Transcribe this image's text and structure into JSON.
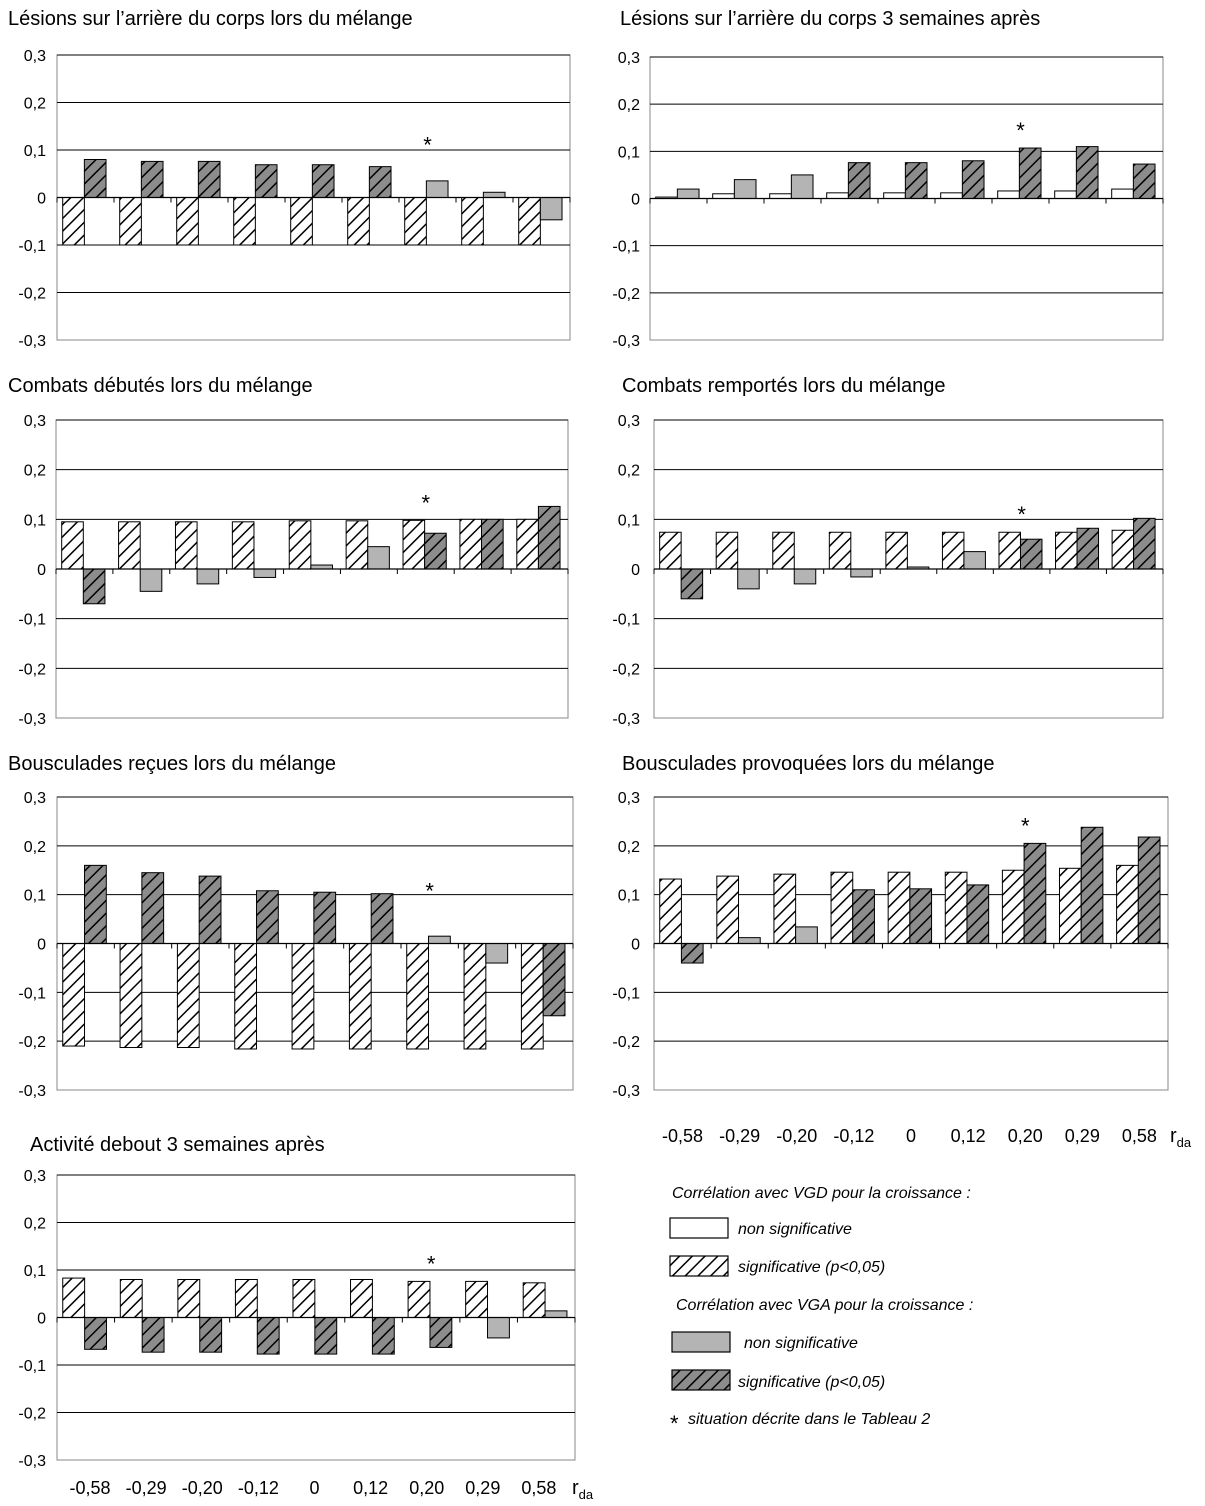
{
  "colors": {
    "hatch_stroke": "#000000",
    "plain_fill": "#ffffff",
    "gray_fill": "#b4b4b4",
    "dark_hatch_bg": "#8c8c8c",
    "grid": "#000000",
    "frame": "#888888"
  },
  "x_axis": {
    "categories": [
      "-0,58",
      "-0,29",
      "-0,20",
      "-0,12",
      "0",
      "0,12",
      "0,20",
      "0,29",
      "0,58"
    ],
    "label_main": "r",
    "label_sub": "da"
  },
  "legend": {
    "vgd_heading": "Corrélation avec  VGD pour la croissance :",
    "vgd_nonsig": "non significative",
    "vgd_sig": "significative (p<0,05)",
    "vga_heading": "Corrélation avec VGA pour la croissance :",
    "vga_nonsig": "non significative",
    "vga_sig": "significative (p<0,05)",
    "star_symbol": "*",
    "star_text": "situation décrite dans le Tableau 2"
  },
  "chart_data": [
    {
      "type": "bar",
      "title": "Lésions sur l’arrière du corps lors du mélange",
      "ylim": [
        -0.3,
        0.3
      ],
      "yticks": [
        "-0,3",
        "-0,2",
        "-0,1",
        "0",
        "0,1",
        "0,2",
        "0,3"
      ],
      "categories": [
        "-0,58",
        "-0,29",
        "-0,20",
        "-0,12",
        "0",
        "0,12",
        "0,20",
        "0,29",
        "0,58"
      ],
      "star_category": "0,20",
      "series": [
        {
          "values": [
            -0.1,
            -0.1,
            -0.1,
            -0.1,
            -0.1,
            -0.1,
            -0.1,
            -0.1,
            -0.1
          ],
          "significant": [
            true,
            true,
            true,
            true,
            true,
            true,
            true,
            true,
            true
          ]
        },
        {
          "values": [
            0.08,
            0.076,
            0.076,
            0.069,
            0.069,
            0.065,
            0.035,
            0.011,
            -0.047
          ],
          "significant": [
            true,
            true,
            true,
            true,
            true,
            true,
            false,
            false,
            false
          ]
        }
      ]
    },
    {
      "type": "bar",
      "title": "Lésions sur l’arrière du corps 3 semaines après",
      "ylim": [
        -0.3,
        0.3
      ],
      "yticks": [
        "-0,3",
        "-0,2",
        "-0,1",
        "0",
        "0,1",
        "0,2",
        "0,3"
      ],
      "categories": [
        "-0,58",
        "-0,29",
        "-0,20",
        "-0,12",
        "0",
        "0,12",
        "0,20",
        "0,29",
        "0,58"
      ],
      "star_category": "0,20",
      "series": [
        {
          "values": [
            0.003,
            0.01,
            0.01,
            0.012,
            0.012,
            0.012,
            0.016,
            0.016,
            0.02
          ],
          "significant": [
            false,
            false,
            false,
            false,
            false,
            false,
            false,
            false,
            false
          ]
        },
        {
          "values": [
            0.02,
            0.04,
            0.05,
            0.076,
            0.076,
            0.08,
            0.107,
            0.11,
            0.073
          ],
          "significant": [
            false,
            false,
            false,
            true,
            true,
            true,
            true,
            true,
            true
          ]
        }
      ]
    },
    {
      "type": "bar",
      "title": "Combats débutés lors du mélange",
      "ylim": [
        -0.3,
        0.3
      ],
      "yticks": [
        "-0,3",
        "-0,2",
        "-0,1",
        "0",
        "0,1",
        "0,2",
        "0,3"
      ],
      "categories": [
        "-0,58",
        "-0,29",
        "-0,20",
        "-0,12",
        "0",
        "0,12",
        "0,20",
        "0,29",
        "0,58"
      ],
      "star_category": "0,20",
      "series": [
        {
          "values": [
            0.095,
            0.095,
            0.095,
            0.095,
            0.097,
            0.097,
            0.098,
            0.1,
            0.1
          ],
          "significant": [
            true,
            true,
            true,
            true,
            true,
            true,
            true,
            true,
            true
          ]
        },
        {
          "values": [
            -0.07,
            -0.045,
            -0.03,
            -0.017,
            0.008,
            0.045,
            0.072,
            0.1,
            0.126
          ],
          "significant": [
            true,
            false,
            false,
            false,
            false,
            false,
            true,
            true,
            true
          ]
        }
      ]
    },
    {
      "type": "bar",
      "title": "Combats remportés lors du mélange",
      "ylim": [
        -0.3,
        0.3
      ],
      "yticks": [
        "-0,3",
        "-0,2",
        "-0,1",
        "0",
        "0,1",
        "0,2",
        "0,3"
      ],
      "categories": [
        "-0,58",
        "-0,29",
        "-0,20",
        "-0,12",
        "0",
        "0,12",
        "0,20",
        "0,29",
        "0,58"
      ],
      "star_category": "0,20",
      "series": [
        {
          "values": [
            0.074,
            0.074,
            0.074,
            0.074,
            0.074,
            0.074,
            0.074,
            0.074,
            0.078
          ],
          "significant": [
            true,
            true,
            true,
            true,
            true,
            true,
            true,
            true,
            true
          ]
        },
        {
          "values": [
            -0.06,
            -0.04,
            -0.03,
            -0.016,
            0.004,
            0.035,
            0.06,
            0.082,
            0.102
          ],
          "significant": [
            true,
            false,
            false,
            false,
            false,
            false,
            true,
            true,
            true
          ]
        }
      ]
    },
    {
      "type": "bar",
      "title": "Bousculades reçues lors du mélange",
      "ylim": [
        -0.3,
        0.3
      ],
      "yticks": [
        "-0,3",
        "-0,2",
        "-0,1",
        "0",
        "0,1",
        "0,2",
        "0,3"
      ],
      "categories": [
        "-0,58",
        "-0,29",
        "-0,20",
        "-0,12",
        "0",
        "0,12",
        "0,20",
        "0,29",
        "0,58"
      ],
      "star_category": "0,20",
      "series": [
        {
          "values": [
            -0.21,
            -0.213,
            -0.213,
            -0.216,
            -0.216,
            -0.216,
            -0.216,
            -0.216,
            -0.216
          ],
          "significant": [
            true,
            true,
            true,
            true,
            true,
            true,
            true,
            true,
            true
          ]
        },
        {
          "values": [
            0.16,
            0.145,
            0.138,
            0.108,
            0.105,
            0.102,
            0.015,
            -0.04,
            -0.148
          ],
          "significant": [
            true,
            true,
            true,
            true,
            true,
            true,
            false,
            false,
            true
          ]
        }
      ]
    },
    {
      "type": "bar",
      "title": "Bousculades provoquées lors du mélange",
      "ylim": [
        -0.3,
        0.3
      ],
      "yticks": [
        "-0,3",
        "-0,2",
        "-0,1",
        "0",
        "0,1",
        "0,2",
        "0,3"
      ],
      "categories": [
        "-0,58",
        "-0,29",
        "-0,20",
        "-0,12",
        "0",
        "0,12",
        "0,20",
        "0,29",
        "0,58"
      ],
      "star_category": "0,20",
      "series": [
        {
          "values": [
            0.132,
            0.138,
            0.142,
            0.146,
            0.146,
            0.146,
            0.15,
            0.154,
            0.16
          ],
          "significant": [
            true,
            true,
            true,
            true,
            true,
            true,
            true,
            true,
            true
          ]
        },
        {
          "values": [
            -0.04,
            0.012,
            0.034,
            0.11,
            0.112,
            0.12,
            0.205,
            0.238,
            0.218
          ],
          "significant": [
            true,
            false,
            false,
            true,
            true,
            true,
            true,
            true,
            true
          ]
        }
      ]
    },
    {
      "type": "bar",
      "title": "Activité debout 3 semaines après",
      "ylim": [
        -0.3,
        0.3
      ],
      "yticks": [
        "-0,3",
        "-0,2",
        "-0,1",
        "0",
        "0,1",
        "0,2",
        "0,3"
      ],
      "categories": [
        "-0,58",
        "-0,29",
        "-0,20",
        "-0,12",
        "0",
        "0,12",
        "0,20",
        "0,29",
        "0,58"
      ],
      "star_category": "0,20",
      "series": [
        {
          "values": [
            0.083,
            0.08,
            0.08,
            0.08,
            0.08,
            0.08,
            0.076,
            0.076,
            0.073
          ],
          "significant": [
            true,
            true,
            true,
            true,
            true,
            true,
            true,
            true,
            true
          ]
        },
        {
          "values": [
            -0.067,
            -0.073,
            -0.073,
            -0.077,
            -0.077,
            -0.077,
            -0.063,
            -0.043,
            0.014
          ],
          "significant": [
            true,
            true,
            true,
            true,
            true,
            true,
            true,
            false,
            false
          ]
        }
      ]
    }
  ]
}
